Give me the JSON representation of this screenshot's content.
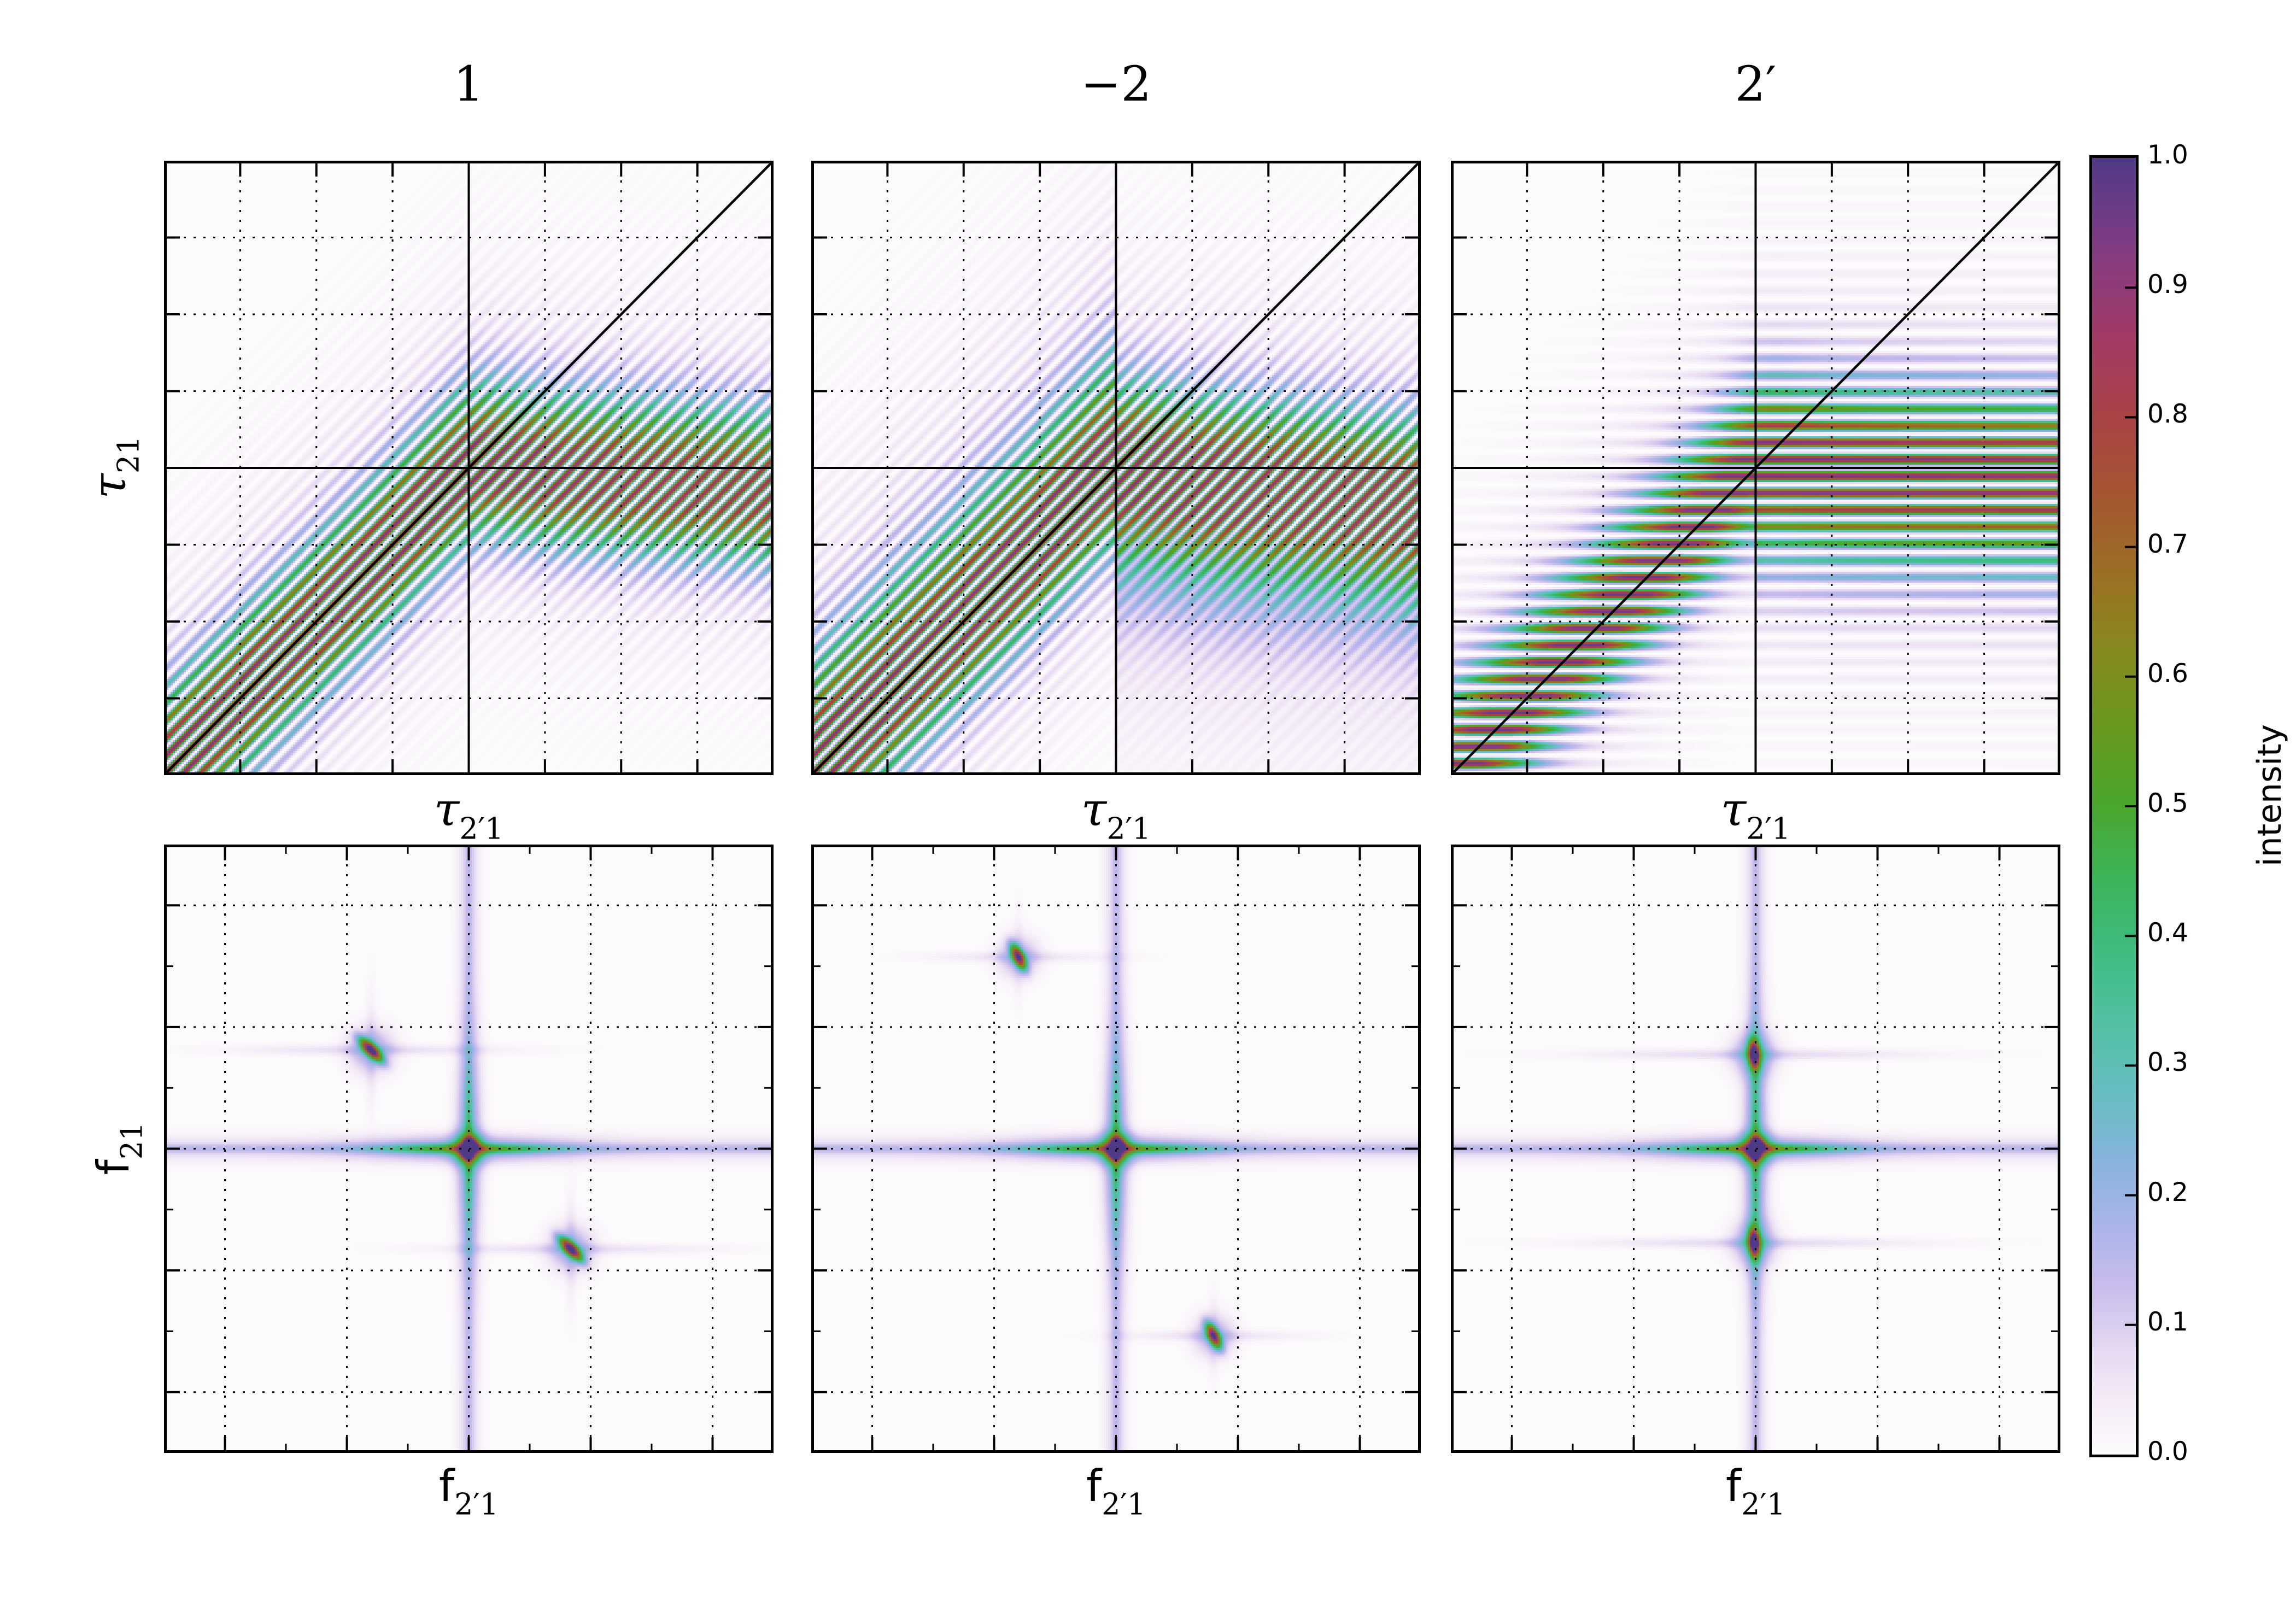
{
  "figure": {
    "background": "#ffffff",
    "rows": 2,
    "cols": 3
  },
  "colorbar": {
    "label": "intensity",
    "ticks": [
      "1.0",
      "0.9",
      "0.8",
      "0.7",
      "0.6",
      "0.5",
      "0.4",
      "0.3",
      "0.2",
      "0.1",
      "0.0"
    ],
    "tick_values": [
      1.0,
      0.9,
      0.8,
      0.7,
      0.6,
      0.5,
      0.4,
      0.3,
      0.2,
      0.1,
      0.0
    ]
  },
  "colormap": {
    "stops": [
      [
        0.0,
        "#fdfbfd"
      ],
      [
        0.04,
        "#f4ecf7"
      ],
      [
        0.08,
        "#e5daf2"
      ],
      [
        0.13,
        "#c9bcec"
      ],
      [
        0.18,
        "#a8b4e9"
      ],
      [
        0.23,
        "#84b4da"
      ],
      [
        0.28,
        "#66bdc0"
      ],
      [
        0.33,
        "#53c0a4"
      ],
      [
        0.38,
        "#3fbd85"
      ],
      [
        0.44,
        "#3bb55c"
      ],
      [
        0.5,
        "#4aa72e"
      ],
      [
        0.56,
        "#68991e"
      ],
      [
        0.62,
        "#878a1f"
      ],
      [
        0.68,
        "#9c6f24"
      ],
      [
        0.74,
        "#a55631"
      ],
      [
        0.8,
        "#a94345"
      ],
      [
        0.86,
        "#a23a64"
      ],
      [
        0.92,
        "#883c80"
      ],
      [
        0.96,
        "#6c3b86"
      ],
      [
        1.0,
        "#4e3a87"
      ]
    ]
  },
  "chart_data": [
    {
      "id": "tau-panel-1",
      "type": "heatmap",
      "row": "top",
      "title": "1",
      "xlabel": {
        "main": "τ",
        "sub": "2′1"
      },
      "ylabel": {
        "main": "τ",
        "sub": "21"
      },
      "xrange": [
        -1,
        1
      ],
      "yrange": [
        -1,
        1
      ],
      "grid": {
        "major": [
          0.125,
          0.25,
          0.375,
          0.5,
          0.625,
          0.75,
          0.875
        ],
        "minor": [],
        "solid_center": true,
        "diagonal": true
      },
      "model": {
        "fn": "stripe_band",
        "orient": "anti",
        "period": 0.057,
        "phase": 0,
        "right_slope": -0.08,
        "sig_al": 0.17,
        "sig_bl": 0.16,
        "sig_ar": 0.17,
        "sig_br": 0.15,
        "halo": 0.1,
        "amp": 0.95,
        "amp_tilt": 0.06,
        "smooth_tail": false
      }
    },
    {
      "id": "tau-panel-minus2",
      "type": "heatmap",
      "row": "top",
      "title": "−2",
      "xlabel": {
        "main": "τ",
        "sub": "2′1"
      },
      "ylabel": {
        "main": "τ",
        "sub": "21"
      },
      "xrange": [
        -1,
        1
      ],
      "yrange": [
        -1,
        1
      ],
      "grid": {
        "major": [
          0.125,
          0.25,
          0.375,
          0.5,
          0.625,
          0.75,
          0.875
        ],
        "minor": [],
        "solid_center": true,
        "diagonal": true
      },
      "model": {
        "fn": "stripe_band",
        "orient": "anti",
        "period": 0.057,
        "phase": 0,
        "right_slope": -0.11,
        "sig_al": 0.23,
        "sig_bl": 0.16,
        "sig_ar": 0.17,
        "sig_br": 0.26,
        "halo": 0.12,
        "amp": 0.95,
        "amp_tilt": 0.05,
        "smooth_tail": true
      }
    },
    {
      "id": "tau-panel-2prime",
      "type": "heatmap",
      "row": "top",
      "title": "2′",
      "xlabel": {
        "main": "τ",
        "sub": "2′1"
      },
      "ylabel": {
        "main": "τ",
        "sub": "21"
      },
      "xrange": [
        -1,
        1
      ],
      "yrange": [
        -1,
        1
      ],
      "grid": {
        "major": [
          0.125,
          0.25,
          0.375,
          0.5,
          0.625,
          0.75,
          0.875
        ],
        "minor": [],
        "solid_center": true,
        "diagonal": true
      },
      "model": {
        "fn": "stripe_band",
        "orient": "horiz",
        "period": 0.055,
        "phase": 3.14159,
        "right_slope": -0.03,
        "sig_al": 0.17,
        "sig_bl": 0.14,
        "sig_ar": 0.17,
        "sig_br": 0.19,
        "halo": 0.1,
        "amp": 0.96,
        "amp_tilt": 0.04,
        "smooth_tail": false
      }
    },
    {
      "id": "f-panel-1",
      "type": "heatmap",
      "row": "bottom",
      "title": "",
      "xlabel": {
        "main": "f",
        "sub": "2′1"
      },
      "ylabel": {
        "main": "f",
        "sub": "21"
      },
      "xrange": [
        -1,
        1
      ],
      "yrange": [
        -1,
        1
      ],
      "grid": {
        "major": [
          0.1,
          0.3,
          0.5,
          0.7,
          0.9
        ],
        "minor": [
          0.2,
          0.4,
          0.6,
          0.8
        ],
        "solid_center": false,
        "diagonal": false
      },
      "model": {
        "fn": "cross_peaks",
        "core": [
          [
            0.004,
            0.013,
            1.0
          ],
          [
            -0.004,
            -0.014,
            0.95
          ]
        ],
        "ring": [
          0.4,
          0.034
        ],
        "hline": [
          0.28,
          0.25,
          0.08,
          0.01
        ],
        "vline": [
          0.13,
          0.24,
          0.05,
          0.009
        ],
        "hband": [
          0.08,
          0.03
        ],
        "vband": [
          0.1,
          0.024
        ],
        "arms": [
          0.15,
          0.03,
          0.24
        ],
        "satellites": [
          {
            "x": -0.32,
            "y": 0.325,
            "amp": 0.85,
            "angle": -45,
            "s1": 0.034,
            "s2": 0.012
          },
          {
            "x": 0.335,
            "y": -0.33,
            "amp": 0.85,
            "angle": -45,
            "s1": 0.034,
            "s2": 0.012
          }
        ],
        "sat_halo": [
          0.2,
          0.05
        ],
        "sat_hstreak": [
          0.07,
          0.012,
          0.45
        ],
        "sat_vstreak": [
          0.05,
          0.012,
          0.2
        ]
      }
    },
    {
      "id": "f-panel-minus2",
      "type": "heatmap",
      "row": "bottom",
      "title": "",
      "xlabel": {
        "main": "f",
        "sub": "2′1"
      },
      "ylabel": {
        "main": "f",
        "sub": "21"
      },
      "xrange": [
        -1,
        1
      ],
      "yrange": [
        -1,
        1
      ],
      "grid": {
        "major": [
          0.1,
          0.3,
          0.5,
          0.7,
          0.9
        ],
        "minor": [
          0.2,
          0.4,
          0.6,
          0.8
        ],
        "solid_center": false,
        "diagonal": false
      },
      "model": {
        "fn": "cross_peaks",
        "core": [
          [
            0.004,
            0.013,
            1.0
          ],
          [
            -0.004,
            -0.014,
            0.95
          ]
        ],
        "ring": [
          0.4,
          0.034
        ],
        "hline": [
          0.28,
          0.25,
          0.08,
          0.01
        ],
        "vline": [
          0.13,
          0.24,
          0.05,
          0.009
        ],
        "hband": [
          0.08,
          0.03
        ],
        "vband": [
          0.1,
          0.024
        ],
        "arms": [
          0.15,
          0.03,
          0.24
        ],
        "satellites": [
          {
            "x": -0.32,
            "y": 0.63,
            "amp": 0.8,
            "angle": -63,
            "s1": 0.03,
            "s2": 0.012
          },
          {
            "x": 0.32,
            "y": -0.615,
            "amp": 0.8,
            "angle": -63,
            "s1": 0.03,
            "s2": 0.012
          }
        ],
        "sat_halo": [
          0.18,
          0.045
        ],
        "sat_hstreak": [
          0.06,
          0.012,
          0.3
        ],
        "sat_vstreak": [
          0.04,
          0.012,
          0.15
        ]
      }
    },
    {
      "id": "f-panel-2prime",
      "type": "heatmap",
      "row": "bottom",
      "title": "",
      "xlabel": {
        "main": "f",
        "sub": "2′1"
      },
      "ylabel": {
        "main": "f",
        "sub": "21"
      },
      "xrange": [
        -1,
        1
      ],
      "yrange": [
        -1,
        1
      ],
      "grid": {
        "major": [
          0.1,
          0.3,
          0.5,
          0.7,
          0.9
        ],
        "minor": [
          0.2,
          0.4,
          0.6,
          0.8
        ],
        "solid_center": false,
        "diagonal": false
      },
      "model": {
        "fn": "cross_peaks",
        "core": [
          [
            0.004,
            0.013,
            1.0
          ],
          [
            -0.004,
            -0.014,
            0.95
          ]
        ],
        "ring": [
          0.4,
          0.034
        ],
        "hline": [
          0.28,
          0.25,
          0.08,
          0.01
        ],
        "vline": [
          0.13,
          0.24,
          0.05,
          0.009
        ],
        "hband": [
          0.08,
          0.03
        ],
        "vband": [
          0.1,
          0.024
        ],
        "arms": [
          0.15,
          0.03,
          0.24
        ],
        "satellites": [
          {
            "x": -0.005,
            "y": 0.31,
            "amp": 0.82,
            "angle": -85,
            "s1": 0.03,
            "s2": 0.012
          },
          {
            "x": -0.005,
            "y": -0.31,
            "amp": 0.82,
            "angle": -85,
            "s1": 0.03,
            "s2": 0.012
          }
        ],
        "sat_halo": [
          0.2,
          0.05
        ],
        "sat_hstreak": [
          0.08,
          0.012,
          0.55
        ],
        "sat_vstreak": [
          0.05,
          0.012,
          0.2
        ]
      }
    }
  ]
}
